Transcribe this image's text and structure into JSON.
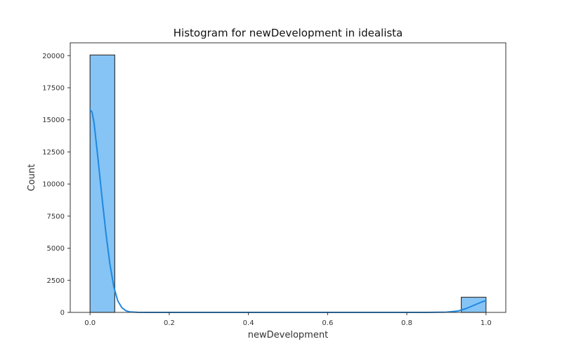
{
  "chart_data": {
    "type": "bar",
    "title": "Histogram for newDevelopment in idealista",
    "xlabel": "newDevelopment",
    "ylabel": "Count",
    "xlim": [
      -0.05,
      1.05
    ],
    "ylim": [
      0,
      21000
    ],
    "x_ticks": [
      0.0,
      0.2,
      0.4,
      0.6,
      0.8,
      1.0
    ],
    "x_tick_labels": [
      "0.0",
      "0.2",
      "0.4",
      "0.6",
      "0.8",
      "1.0"
    ],
    "y_ticks": [
      0,
      2500,
      5000,
      7500,
      10000,
      12500,
      15000,
      17500,
      20000
    ],
    "y_tick_labels": [
      "0",
      "2500",
      "5000",
      "7500",
      "10000",
      "12500",
      "15000",
      "17500",
      "20000"
    ],
    "bin_edges": [
      0.0,
      0.0625,
      0.125,
      0.1875,
      0.25,
      0.3125,
      0.375,
      0.4375,
      0.5,
      0.5625,
      0.625,
      0.6875,
      0.75,
      0.8125,
      0.875,
      0.9375,
      1.0
    ],
    "values": [
      20050,
      0,
      0,
      0,
      0,
      0,
      0,
      0,
      0,
      0,
      0,
      0,
      0,
      0,
      0,
      1180
    ],
    "kde": {
      "x": [
        0.0,
        0.005,
        0.01,
        0.02,
        0.03,
        0.04,
        0.05,
        0.06,
        0.07,
        0.08,
        0.09,
        0.1,
        0.12,
        0.15,
        0.2,
        0.3,
        0.5,
        0.7,
        0.85,
        0.9,
        0.93,
        0.95,
        0.97,
        0.99,
        1.0
      ],
      "y": [
        15800,
        15600,
        14800,
        12000,
        9000,
        6200,
        3800,
        2000,
        900,
        380,
        140,
        40,
        10,
        0,
        0,
        0,
        0,
        0,
        0,
        20,
        110,
        300,
        560,
        820,
        920
      ]
    },
    "grid": false,
    "legend": "none",
    "colors": {
      "bar_fill": "#85c4f5",
      "bar_edge": "#3a3a3a",
      "kde_line": "#1f88e0",
      "axes_frame": "#333333"
    }
  }
}
